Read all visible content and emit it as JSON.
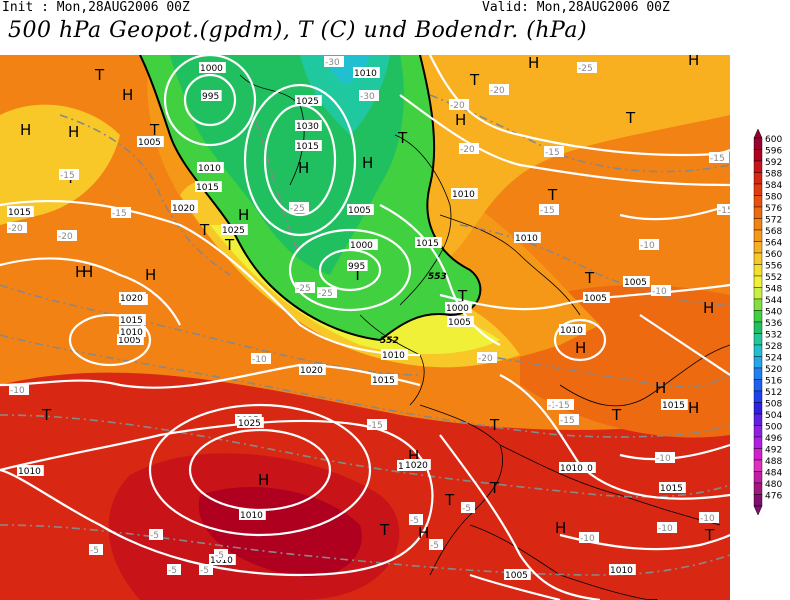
{
  "header": {
    "init": "Init : Mon,28AUG2006 00Z",
    "valid": "Valid: Mon,28AUG2006 00Z",
    "title": "500 hPa Geopot.(gpdm), T (C) und Bodendr. (hPa)"
  },
  "legend": {
    "values": [
      "600",
      "596",
      "592",
      "588",
      "584",
      "580",
      "576",
      "572",
      "568",
      "564",
      "560",
      "556",
      "552",
      "548",
      "544",
      "540",
      "536",
      "532",
      "528",
      "524",
      "520",
      "516",
      "512",
      "508",
      "504",
      "500",
      "496",
      "492",
      "488",
      "484",
      "480",
      "476"
    ],
    "colors": [
      "#9a0030",
      "#b00020",
      "#c81418",
      "#d82814",
      "#e03c10",
      "#e85010",
      "#ee6a10",
      "#f28214",
      "#f59818",
      "#f8b020",
      "#f8c828",
      "#f4e030",
      "#f0f038",
      "#c8f040",
      "#80e040",
      "#40d040",
      "#20c060",
      "#20c8a0",
      "#20c0d0",
      "#20a8e8",
      "#2080f0",
      "#2060f0",
      "#2040f0",
      "#3020e0",
      "#6020e0",
      "#9020e0",
      "#b020e0",
      "#d020d0",
      "#e030c0",
      "#c020a0",
      "#a01880",
      "#801070"
    ]
  },
  "map": {
    "high_labels": [
      "H",
      "H",
      "H",
      "H",
      "H",
      "H",
      "H",
      "H",
      "H",
      "H",
      "H",
      "H",
      "H",
      "H",
      "H",
      "H",
      "H",
      "H",
      "H",
      "H"
    ],
    "low_labels": [
      "T",
      "T",
      "T",
      "T",
      "T",
      "T",
      "T",
      "T",
      "T",
      "T",
      "T",
      "T",
      "T",
      "T",
      "T",
      "T",
      "T",
      "T",
      "T",
      "T"
    ],
    "pressure_labels": [
      "1000",
      "995",
      "1005",
      "1010",
      "1015",
      "1020",
      "1025",
      "1030",
      "1015",
      "1010",
      "1005",
      "1015",
      "1020",
      "1025",
      "1010",
      "1015",
      "1020",
      "1005",
      "1010",
      "1020",
      "1000",
      "995",
      "1005",
      "1000",
      "1005",
      "1010",
      "1015",
      "1020",
      "1010",
      "1005",
      "1010",
      "1005",
      "1010",
      "1015",
      "1010",
      "1020",
      "1025",
      "1015",
      "1010",
      "1020",
      "1010",
      "1010",
      "1005",
      "1010",
      "1015",
      "1020",
      "1025"
    ],
    "temp_labels": [
      "-30",
      "-30",
      "-25",
      "-20",
      "-20",
      "-25",
      "-15",
      "-15",
      "-15",
      "-20",
      "-20",
      "-15",
      "-25",
      "-25",
      "-25",
      "-20",
      "-15",
      "-15",
      "-10",
      "-10",
      "-10",
      "-15",
      "-15",
      "-10",
      "-10",
      "-5",
      "-5",
      "-5",
      "-5",
      "-5",
      "-10",
      "-10",
      "-5",
      "-5",
      "-10",
      "-15",
      "-15",
      "-20",
      "-5"
    ],
    "geo_labels": [
      "553",
      "552"
    ]
  }
}
